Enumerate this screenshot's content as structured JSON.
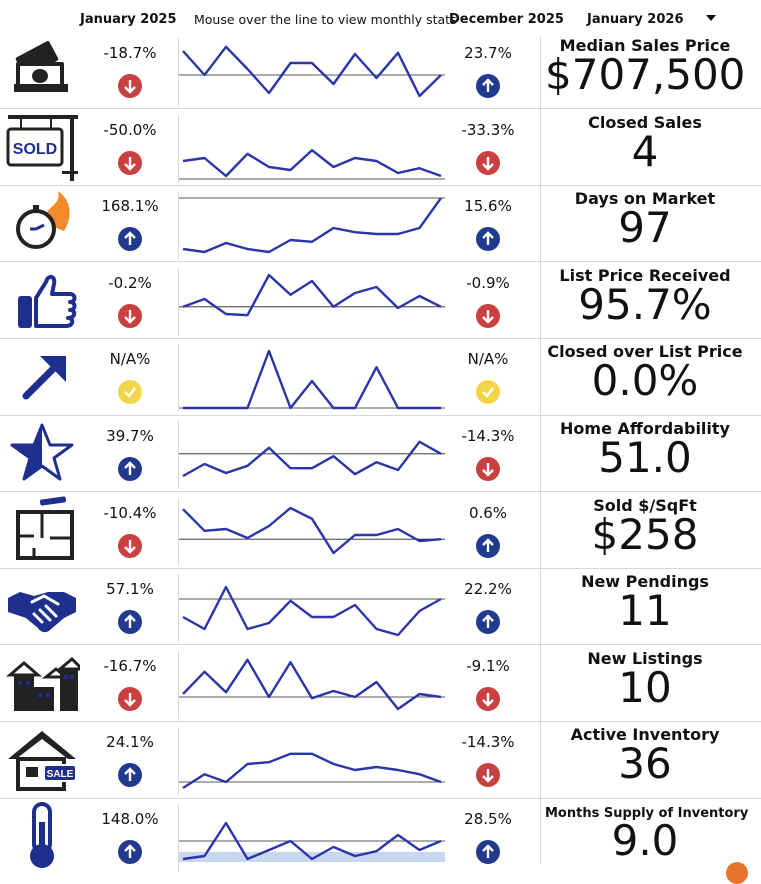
{
  "header": {
    "col1": "January 2025",
    "hint": "Mouse over the line to view monthly stats",
    "col2": "December 2025",
    "period": "January 2026"
  },
  "colors": {
    "line": "#2b35a8",
    "up": "#223a8e",
    "down": "#c84040",
    "neutral": "#f2d54a",
    "icon": "#1f2f8e"
  },
  "rows": [
    {
      "icon": "money-icon",
      "name": "Median Sales Price",
      "value": "$707,500",
      "yoy": "-18.7%",
      "yoy_dir": "down",
      "mom": "23.7%",
      "mom_dir": "up",
      "series": [
        0.85,
        0.45,
        0.92,
        0.55,
        0.15,
        0.65,
        0.65,
        0.3,
        0.8,
        0.4,
        0.82,
        0.1,
        0.45
      ],
      "ref": 0.45
    },
    {
      "icon": "sold-sign-icon",
      "name": "Closed Sales",
      "value": "4",
      "yoy": "-50.0%",
      "yoy_dir": "down",
      "mom": "-33.3%",
      "mom_dir": "down",
      "series": [
        0.3,
        0.35,
        0.05,
        0.42,
        0.2,
        0.15,
        0.48,
        0.2,
        0.35,
        0.3,
        0.1,
        0.18,
        0.05
      ],
      "ref": 0.0
    },
    {
      "icon": "stopwatch-icon",
      "name": "Days on Market",
      "value": "97",
      "yoy": "168.1%",
      "yoy_dir": "up",
      "mom": "15.6%",
      "mom_dir": "up",
      "series": [
        0.1,
        0.05,
        0.2,
        0.1,
        0.05,
        0.25,
        0.22,
        0.45,
        0.38,
        0.35,
        0.35,
        0.45,
        0.95
      ],
      "ref": 0.95
    },
    {
      "icon": "thumbs-up-icon",
      "name": "List Price Received",
      "value": "95.7%",
      "yoy": "-0.2%",
      "yoy_dir": "down",
      "mom": "-0.9%",
      "mom_dir": "down",
      "series": [
        0.42,
        0.55,
        0.3,
        0.28,
        0.95,
        0.62,
        0.85,
        0.42,
        0.65,
        0.75,
        0.4,
        0.6,
        0.42
      ],
      "ref": 0.42
    },
    {
      "icon": "trend-arrow-icon",
      "name": "Closed over List Price",
      "value": "0.0%",
      "yoy": "N/A%",
      "yoy_dir": "neutral",
      "mom": "N/A%",
      "mom_dir": "neutral",
      "series": [
        0.0,
        0.0,
        0.0,
        0.0,
        0.95,
        0.0,
        0.45,
        0.0,
        0.0,
        0.68,
        0.0,
        0.0,
        0.0
      ],
      "ref": 0.0
    },
    {
      "icon": "star-icon",
      "name": "Home Affordability",
      "value": "51.0",
      "yoy": "39.7%",
      "yoy_dir": "up",
      "mom": "-14.3%",
      "mom_dir": "down",
      "series": [
        0.15,
        0.35,
        0.2,
        0.32,
        0.62,
        0.28,
        0.28,
        0.48,
        0.18,
        0.38,
        0.25,
        0.72,
        0.52
      ],
      "ref": 0.52
    },
    {
      "icon": "floor-plan-icon",
      "name": "Sold $/SqFt",
      "value": "$258",
      "yoy": "-10.4%",
      "yoy_dir": "down",
      "mom": "0.6%",
      "mom_dir": "up",
      "series": [
        0.88,
        0.52,
        0.55,
        0.4,
        0.6,
        0.9,
        0.72,
        0.15,
        0.45,
        0.45,
        0.55,
        0.35,
        0.38
      ],
      "ref": 0.38
    },
    {
      "icon": "handshake-icon",
      "name": "New Pendings",
      "value": "11",
      "yoy": "57.1%",
      "yoy_dir": "up",
      "mom": "22.2%",
      "mom_dir": "up",
      "series": [
        0.35,
        0.15,
        0.85,
        0.15,
        0.25,
        0.62,
        0.35,
        0.35,
        0.55,
        0.15,
        0.05,
        0.45,
        0.65
      ],
      "ref": 0.65
    },
    {
      "icon": "neighborhood-icon",
      "name": "New Listings",
      "value": "10",
      "yoy": "-16.7%",
      "yoy_dir": "down",
      "mom": "-9.1%",
      "mom_dir": "down",
      "series": [
        0.35,
        0.72,
        0.38,
        0.92,
        0.3,
        0.88,
        0.28,
        0.4,
        0.3,
        0.55,
        0.1,
        0.35,
        0.3
      ],
      "ref": 0.3
    },
    {
      "icon": "house-sale-icon",
      "name": "Active Inventory",
      "value": "36",
      "yoy": "24.1%",
      "yoy_dir": "up",
      "mom": "-14.3%",
      "mom_dir": "down",
      "series": [
        0.05,
        0.28,
        0.15,
        0.45,
        0.48,
        0.62,
        0.62,
        0.45,
        0.35,
        0.4,
        0.35,
        0.28,
        0.15
      ],
      "ref": 0.15
    },
    {
      "icon": "thermometer-icon",
      "name": "Months Supply of Inventory",
      "value": "9.0",
      "yoy": "148.0%",
      "yoy_dir": "up",
      "mom": "28.5%",
      "mom_dir": "up",
      "series": [
        0.15,
        0.2,
        0.75,
        0.15,
        0.3,
        0.45,
        0.15,
        0.35,
        0.2,
        0.28,
        0.55,
        0.3,
        0.45
      ],
      "ref": 0.45
    }
  ]
}
